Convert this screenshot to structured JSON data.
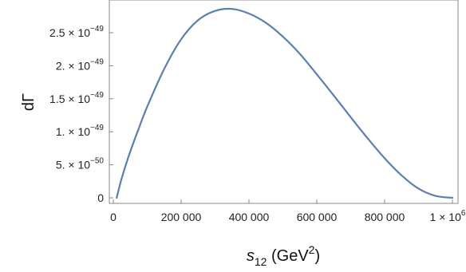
{
  "chart_data": {
    "type": "line",
    "xlabel_base": "s",
    "xlabel_sub": "12",
    "xlabel_unit_pre": " (GeV",
    "xlabel_unit_sup": "2",
    "xlabel_unit_post": ")",
    "ylabel": "dΓ",
    "xlim": [
      0,
      1000000
    ],
    "ylim": [
      -1e-50,
      2.9e-49
    ],
    "grid": false,
    "x_ticks": [
      {
        "value": 0,
        "label": "0"
      },
      {
        "value": 200000,
        "label": "200 000"
      },
      {
        "value": 400000,
        "label": "400 000"
      },
      {
        "value": 600000,
        "label": "600 000"
      },
      {
        "value": 800000,
        "label": "800 000"
      },
      {
        "value": 1000000,
        "label": "1 × 10",
        "exp": "6"
      }
    ],
    "y_ticks": [
      {
        "value": 0,
        "label": "0",
        "exp": ""
      },
      {
        "value": 5e-50,
        "label": "5. × 10",
        "exp": "−50"
      },
      {
        "value": 1e-49,
        "label": "1. × 10",
        "exp": "−49"
      },
      {
        "value": 1.5e-49,
        "label": "1.5 × 10",
        "exp": "−49"
      },
      {
        "value": 2e-49,
        "label": "2. × 10",
        "exp": "−49"
      },
      {
        "value": 2.5e-49,
        "label": "2.5 × 10",
        "exp": "−49"
      }
    ],
    "series": [
      {
        "color": "#5b7fb5",
        "x": [
          10000,
          25000,
          50000,
          75000,
          100000,
          150000,
          200000,
          250000,
          300000,
          350000,
          400000,
          450000,
          500000,
          550000,
          600000,
          650000,
          700000,
          750000,
          800000,
          850000,
          900000,
          950000,
          1000000
        ],
        "y": [
          0,
          3e-50,
          7e-50,
          1.05e-49,
          1.38e-49,
          1.95e-49,
          2.4e-49,
          2.69e-49,
          2.83e-49,
          2.86e-49,
          2.79e-49,
          2.65e-49,
          2.44e-49,
          2.18e-49,
          1.87e-49,
          1.55e-49,
          1.22e-49,
          9e-50,
          6e-50,
          3.4e-50,
          1.4e-50,
          3e-51,
          0
        ]
      }
    ]
  }
}
